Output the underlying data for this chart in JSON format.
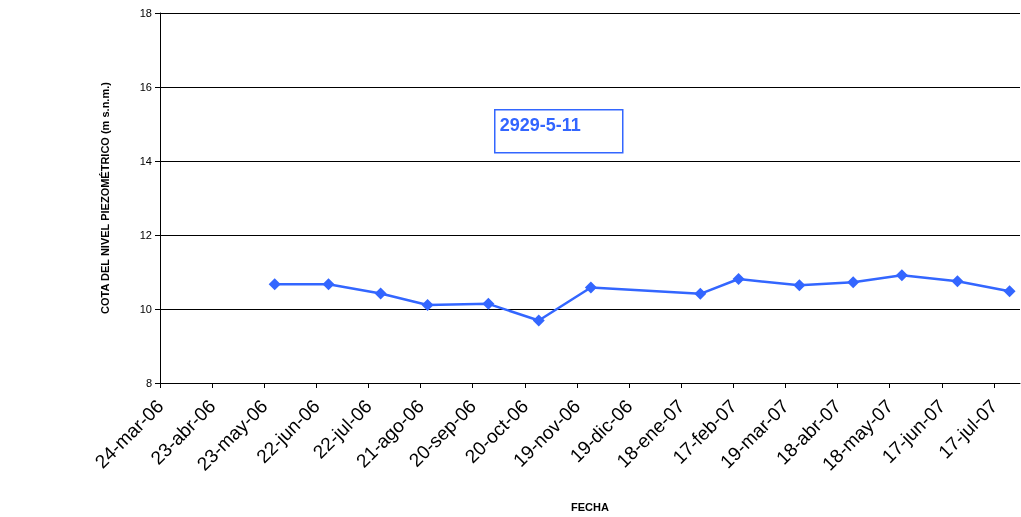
{
  "chart_data": {
    "type": "line",
    "xlabel": "FECHA",
    "ylabel": "COTA DEL NIVEL PIEZOMÉTRICO (m s.n.m.)",
    "annotations": [
      "2929-5-11"
    ],
    "x": [
      "2006-05-29",
      "2006-06-29",
      "2006-07-29",
      "2006-08-25",
      "2006-09-29",
      "2006-10-28",
      "2006-11-27",
      "2007-01-29",
      "2007-02-20",
      "2007-03-27",
      "2007-04-27",
      "2007-05-25",
      "2007-06-26",
      "2007-07-26"
    ],
    "series": [
      {
        "color": "#3366ff",
        "values": [
          10.67,
          10.67,
          10.42,
          10.11,
          10.14,
          9.69,
          10.58,
          10.41,
          10.81,
          10.64,
          10.72,
          10.91,
          10.75,
          10.48
        ]
      }
    ],
    "xlim": [
      "2006-03-24",
      "2007-08-01"
    ],
    "xticks": [
      {
        "value": "2006-03-24",
        "label": "24-mar-06"
      },
      {
        "value": "2006-04-23",
        "label": "23-abr-06"
      },
      {
        "value": "2006-05-23",
        "label": "23-may-06"
      },
      {
        "value": "2006-06-22",
        "label": "22-jun-06"
      },
      {
        "value": "2006-07-22",
        "label": "22-jul-06"
      },
      {
        "value": "2006-08-21",
        "label": "21-ago-06"
      },
      {
        "value": "2006-09-20",
        "label": "20-sep-06"
      },
      {
        "value": "2006-10-20",
        "label": "20-oct-06"
      },
      {
        "value": "2006-11-19",
        "label": "19-nov-06"
      },
      {
        "value": "2006-12-19",
        "label": "19-dic-06"
      },
      {
        "value": "2007-01-18",
        "label": "18-ene-07"
      },
      {
        "value": "2007-02-17",
        "label": "17-feb-07"
      },
      {
        "value": "2007-03-19",
        "label": "19-mar-07"
      },
      {
        "value": "2007-04-18",
        "label": "18-abr-07"
      },
      {
        "value": "2007-05-18",
        "label": "18-may-07"
      },
      {
        "value": "2007-06-17",
        "label": "17-jun-07"
      },
      {
        "value": "2007-07-17",
        "label": "17-jul-07"
      }
    ],
    "ylim": [
      8,
      18
    ],
    "yticks": [
      8,
      10,
      12,
      14,
      16,
      18
    ],
    "grid": "y",
    "marker": "diamond",
    "line_style": "solid"
  }
}
